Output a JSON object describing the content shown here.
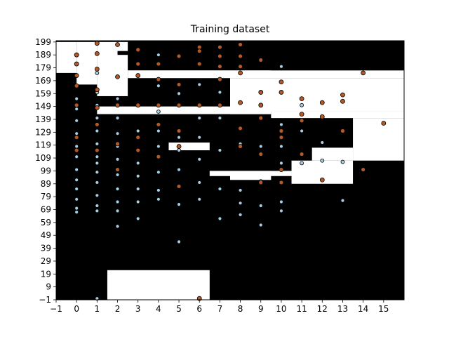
{
  "chart_data": {
    "type": "scatter",
    "title": "Training dataset",
    "xlabel": "",
    "ylabel": "",
    "xlim": [
      -1,
      16
    ],
    "ylim": [
      -1,
      200
    ],
    "x_ticks": [
      -1,
      0,
      1,
      2,
      3,
      4,
      5,
      6,
      7,
      8,
      9,
      10,
      11,
      12,
      13,
      14,
      15
    ],
    "y_ticks": [
      -1,
      9,
      19,
      29,
      39,
      49,
      59,
      69,
      79,
      89,
      99,
      109,
      119,
      129,
      139,
      149,
      159,
      169,
      179,
      189,
      199
    ],
    "grid": false,
    "colors": {
      "class_0": "#a6cee3",
      "class_1": "#b15928",
      "region_dark": "#000000",
      "region_light": "#ffffff",
      "marker_edge": "#000000"
    },
    "background_regions": {
      "class_0": "#000000",
      "class_1_regions": [
        {
          "x": [
            -1,
            0
          ],
          "y": [
            175,
            199
          ]
        },
        {
          "x": [
            0,
            1
          ],
          "y": [
            166,
            199
          ]
        },
        {
          "x": [
            1,
            2.5
          ],
          "y": [
            157,
            199
          ]
        },
        {
          "x": [
            2.5,
            16
          ],
          "y": [
            171,
            177
          ]
        },
        {
          "x": [
            7.5,
            16
          ],
          "y": [
            145,
            171
          ]
        },
        {
          "x": [
            1,
            9.5
          ],
          "y": [
            143,
            149
          ]
        },
        {
          "x": [
            9.5,
            16
          ],
          "y": [
            140,
            145
          ]
        },
        {
          "x": [
            13.5,
            16
          ],
          "y": [
            107,
            140
          ]
        },
        {
          "x": [
            11.5,
            13.5
          ],
          "y": [
            107,
            117
          ]
        },
        {
          "x": [
            10.5,
            13.5
          ],
          "y": [
            89,
            107
          ]
        },
        {
          "x": [
            7.5,
            9.5
          ],
          "y": [
            92,
            99
          ]
        },
        {
          "x": [
            6.5,
            10.5
          ],
          "y": [
            95,
            99
          ]
        },
        {
          "x": [
            4.5,
            6.5
          ],
          "y": [
            115,
            121
          ]
        },
        {
          "x": [
            1.5,
            6.5
          ],
          "y": [
            -1,
            22
          ]
        }
      ],
      "class_0_regions": [
        {
          "x": [
            9.5,
            16
          ],
          "y": [
            177,
            199
          ]
        },
        {
          "x": [
            2,
            4.5
          ],
          "y": [
            189,
            192
          ]
        },
        {
          "x": [
            -1,
            7.5
          ],
          "y": [
            139,
            143
          ]
        },
        {
          "x": [
            1.5,
            9
          ],
          "y": [
            137,
            139
          ]
        }
      ]
    },
    "series": [
      {
        "name": "",
        "points": [
          [
            0,
            155
          ],
          [
            0,
            147
          ],
          [
            0,
            138
          ],
          [
            0,
            128
          ],
          [
            0,
            118
          ],
          [
            0,
            110
          ],
          [
            0,
            100
          ],
          [
            0,
            92
          ],
          [
            0,
            85
          ],
          [
            0,
            77
          ],
          [
            0,
            70
          ],
          [
            0,
            67
          ],
          [
            1,
            175
          ],
          [
            1,
            160
          ],
          [
            1,
            150
          ],
          [
            1,
            140
          ],
          [
            1,
            130
          ],
          [
            1,
            120
          ],
          [
            1,
            110
          ],
          [
            1,
            105
          ],
          [
            1,
            98
          ],
          [
            1,
            90
          ],
          [
            1,
            80
          ],
          [
            1,
            72
          ],
          [
            1,
            68
          ],
          [
            1,
            0
          ],
          [
            2,
            155
          ],
          [
            2,
            140
          ],
          [
            2,
            128
          ],
          [
            2,
            118
          ],
          [
            2,
            108
          ],
          [
            2,
            96
          ],
          [
            2,
            85
          ],
          [
            2,
            75
          ],
          [
            2,
            68
          ],
          [
            2,
            56
          ],
          [
            3,
            150
          ],
          [
            3,
            130
          ],
          [
            3,
            115
          ],
          [
            3,
            105
          ],
          [
            3,
            95
          ],
          [
            3,
            85
          ],
          [
            3,
            75
          ],
          [
            3,
            62
          ],
          [
            4,
            189
          ],
          [
            4,
            165
          ],
          [
            4,
            145
          ],
          [
            4,
            130
          ],
          [
            4,
            118
          ],
          [
            4,
            98
          ],
          [
            4,
            84
          ],
          [
            4,
            77
          ],
          [
            5,
            159
          ],
          [
            5,
            125
          ],
          [
            5,
            115
          ],
          [
            5,
            100
          ],
          [
            5,
            73
          ],
          [
            5,
            44
          ],
          [
            6,
            166
          ],
          [
            6,
            140
          ],
          [
            6,
            125
          ],
          [
            6,
            108
          ],
          [
            6,
            90
          ],
          [
            6,
            77
          ],
          [
            7,
            160
          ],
          [
            7,
            140
          ],
          [
            7,
            115
          ],
          [
            7,
            85
          ],
          [
            7,
            62
          ],
          [
            8,
            120
          ],
          [
            8,
            84
          ],
          [
            8,
            74
          ],
          [
            8,
            65
          ],
          [
            9,
            118
          ],
          [
            9,
            91
          ],
          [
            9,
            72
          ],
          [
            9,
            57
          ],
          [
            10,
            180
          ],
          [
            10,
            135
          ],
          [
            10,
            118
          ],
          [
            10,
            105
          ],
          [
            10,
            75
          ],
          [
            10,
            68
          ],
          [
            11,
            150
          ],
          [
            11,
            130
          ],
          [
            11,
            105
          ],
          [
            12,
            121
          ],
          [
            12,
            107
          ],
          [
            13,
            106
          ],
          [
            13,
            76
          ]
        ]
      },
      {
        "name": "",
        "points": [
          [
            0,
            189
          ],
          [
            0,
            182
          ],
          [
            0,
            173
          ],
          [
            0,
            165
          ],
          [
            0,
            150
          ],
          [
            0,
            125
          ],
          [
            0,
            115
          ],
          [
            1,
            198
          ],
          [
            1,
            190
          ],
          [
            1,
            178
          ],
          [
            1,
            162
          ],
          [
            1,
            148
          ],
          [
            1,
            135
          ],
          [
            1,
            115
          ],
          [
            2,
            197
          ],
          [
            2,
            172
          ],
          [
            2,
            150
          ],
          [
            2,
            120
          ],
          [
            2,
            100
          ],
          [
            3,
            193
          ],
          [
            3,
            182
          ],
          [
            3,
            173
          ],
          [
            3,
            150
          ],
          [
            3,
            125
          ],
          [
            3,
            115
          ],
          [
            4,
            182
          ],
          [
            4,
            170
          ],
          [
            4,
            150
          ],
          [
            4,
            135
          ],
          [
            4,
            110
          ],
          [
            5,
            188
          ],
          [
            5,
            166
          ],
          [
            5,
            150
          ],
          [
            5,
            130
          ],
          [
            5,
            118
          ],
          [
            5,
            87
          ],
          [
            6,
            195
          ],
          [
            6,
            192
          ],
          [
            6,
            182
          ],
          [
            6,
            150
          ],
          [
            6,
            0
          ],
          [
            7,
            195
          ],
          [
            7,
            188
          ],
          [
            7,
            180
          ],
          [
            7,
            170
          ],
          [
            7,
            150
          ],
          [
            8,
            197
          ],
          [
            8,
            188
          ],
          [
            8,
            180
          ],
          [
            8,
            175
          ],
          [
            8,
            152
          ],
          [
            8,
            132
          ],
          [
            8,
            118
          ],
          [
            9,
            185
          ],
          [
            9,
            160
          ],
          [
            9,
            150
          ],
          [
            9,
            140
          ],
          [
            9,
            112
          ],
          [
            9,
            90
          ],
          [
            10,
            168
          ],
          [
            10,
            160
          ],
          [
            10,
            130
          ],
          [
            10,
            125
          ],
          [
            10,
            100
          ],
          [
            10,
            90
          ],
          [
            11,
            155
          ],
          [
            11,
            143
          ],
          [
            11,
            138
          ],
          [
            11,
            112
          ],
          [
            12,
            152
          ],
          [
            12,
            141
          ],
          [
            12,
            92
          ],
          [
            13,
            158
          ],
          [
            13,
            153
          ],
          [
            13,
            130
          ],
          [
            14,
            175
          ],
          [
            14,
            100
          ],
          [
            15,
            136
          ]
        ]
      }
    ]
  }
}
